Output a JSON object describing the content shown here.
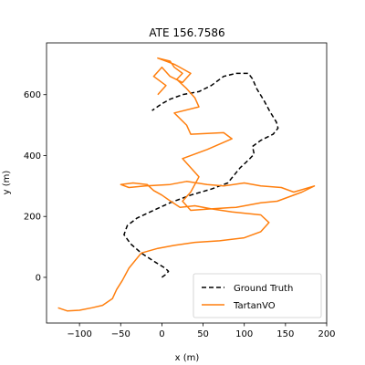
{
  "chart_data": {
    "type": "line",
    "title": "ATE 156.7586",
    "xlabel": "x (m)",
    "ylabel": "y (m)",
    "xlim": [
      -140,
      200
    ],
    "ylim": [
      -150,
      770
    ],
    "xticks": [
      -100,
      -50,
      0,
      50,
      100,
      150,
      200
    ],
    "yticks": [
      0,
      200,
      400,
      600
    ],
    "xtick_labels": [
      "−100",
      "−50",
      "0",
      "50",
      "100",
      "150",
      "200"
    ],
    "ytick_labels": [
      "0",
      "200",
      "400",
      "600"
    ],
    "grid": false,
    "legend_position": "lower-right",
    "series": [
      {
        "name": "Ground Truth",
        "style": "dashed",
        "color": "#000000",
        "points": [
          [
            0,
            0
          ],
          [
            5,
            10
          ],
          [
            8,
            20
          ],
          [
            4,
            30
          ],
          [
            -8,
            50
          ],
          [
            -25,
            80
          ],
          [
            -38,
            110
          ],
          [
            -46,
            140
          ],
          [
            -42,
            170
          ],
          [
            -30,
            195
          ],
          [
            -10,
            220
          ],
          [
            10,
            245
          ],
          [
            35,
            270
          ],
          [
            60,
            290
          ],
          [
            80,
            310
          ],
          [
            95,
            360
          ],
          [
            105,
            385
          ],
          [
            112,
            405
          ],
          [
            110,
            430
          ],
          [
            120,
            450
          ],
          [
            135,
            470
          ],
          [
            141,
            490
          ],
          [
            139,
            510
          ],
          [
            131,
            545
          ],
          [
            124,
            580
          ],
          [
            115,
            620
          ],
          [
            110,
            652
          ],
          [
            105,
            670
          ],
          [
            90,
            670
          ],
          [
            75,
            660
          ],
          [
            60,
            630
          ],
          [
            45,
            610
          ],
          [
            25,
            600
          ],
          [
            10,
            585
          ],
          [
            0,
            570
          ],
          [
            -12,
            548
          ]
        ]
      },
      {
        "name": "TartanVO",
        "style": "solid",
        "color": "#ff7f0e",
        "points": [
          [
            -126,
            -100
          ],
          [
            -115,
            -110
          ],
          [
            -100,
            -108
          ],
          [
            -85,
            -100
          ],
          [
            -72,
            -92
          ],
          [
            -60,
            -70
          ],
          [
            -55,
            -40
          ],
          [
            -48,
            -10
          ],
          [
            -40,
            30
          ],
          [
            -25,
            80
          ],
          [
            -5,
            95
          ],
          [
            15,
            105
          ],
          [
            40,
            115
          ],
          [
            70,
            120
          ],
          [
            100,
            130
          ],
          [
            120,
            150
          ],
          [
            130,
            180
          ],
          [
            120,
            205
          ],
          [
            85,
            215
          ],
          [
            60,
            225
          ],
          [
            40,
            235
          ],
          [
            22,
            230
          ],
          [
            8,
            255
          ],
          [
            0,
            270
          ],
          [
            -10,
            285
          ],
          [
            -18,
            305
          ],
          [
            -35,
            310
          ],
          [
            -50,
            305
          ],
          [
            -40,
            295
          ],
          [
            -20,
            300
          ],
          [
            10,
            305
          ],
          [
            30,
            315
          ],
          [
            55,
            305
          ],
          [
            75,
            300
          ],
          [
            100,
            310
          ],
          [
            120,
            300
          ],
          [
            145,
            295
          ],
          [
            160,
            280
          ],
          [
            185,
            300
          ],
          [
            170,
            280
          ],
          [
            140,
            250
          ],
          [
            120,
            245
          ],
          [
            90,
            230
          ],
          [
            60,
            225
          ],
          [
            35,
            220
          ],
          [
            25,
            250
          ],
          [
            35,
            280
          ],
          [
            45,
            330
          ],
          [
            25,
            390
          ],
          [
            55,
            420
          ],
          [
            85,
            455
          ],
          [
            75,
            475
          ],
          [
            35,
            470
          ],
          [
            30,
            500
          ],
          [
            15,
            540
          ],
          [
            45,
            560
          ],
          [
            40,
            590
          ],
          [
            30,
            620
          ],
          [
            18,
            650
          ],
          [
            25,
            670
          ],
          [
            15,
            690
          ],
          [
            10,
            710
          ],
          [
            -5,
            720
          ],
          [
            15,
            700
          ],
          [
            35,
            670
          ],
          [
            25,
            640
          ],
          [
            10,
            660
          ],
          [
            0,
            690
          ],
          [
            -10,
            660
          ],
          [
            5,
            630
          ],
          [
            -5,
            600
          ]
        ]
      }
    ]
  }
}
